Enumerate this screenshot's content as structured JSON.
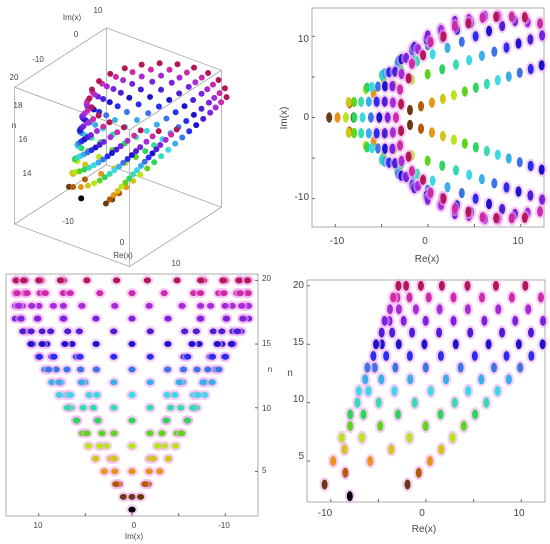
{
  "colors": {
    "n2": "#000000",
    "n3": "#6b3a12",
    "n4": "#b35a08",
    "n5": "#e89418",
    "n6": "#d2c41a",
    "n7": "#b9e51b",
    "n8": "#5fd41e",
    "n9": "#2fd45c",
    "n10": "#35dbb2",
    "n11": "#3dd8e6",
    "n12": "#3aaee8",
    "n13": "#3d73e8",
    "n14": "#2a2cef",
    "n15": "#1e13cc",
    "n16": "#4a1fd6",
    "n17": "#7a22e0",
    "n18": "#a52ad8",
    "n19": "#cc2aa8",
    "n20": "#b31757",
    "halo": "#f0a8ee",
    "frame": "#999999",
    "axis": "#333333"
  },
  "chart_data": [
    {
      "type": "scatter",
      "panel": "3d-view",
      "xlabel": "Re(x)",
      "ylabel": "Im(x)",
      "zlabel": "n",
      "re_ticks": [
        "-10",
        "0",
        "10"
      ],
      "im_ticks": [
        "10",
        "0",
        "-10"
      ],
      "n_ticks": [
        "20",
        "18",
        "16",
        "14"
      ],
      "grid": false
    },
    {
      "type": "scatter",
      "panel": "complex-plane",
      "xlabel": "Re(x)",
      "ylabel": "Im(x)",
      "xlim": [
        -12.5,
        12.5
      ],
      "ylim": [
        -13.5,
        13.5
      ],
      "x_ticks": [
        "-10",
        "0",
        "10"
      ],
      "y_ticks": [
        "10",
        "0",
        "-10"
      ],
      "grid": false
    },
    {
      "type": "scatter",
      "panel": "im-n-view",
      "xlabel": "Im(x)",
      "ylabel": "n",
      "xlim": [
        13.5,
        -13.5
      ],
      "ylim": [
        1.5,
        20.5
      ],
      "x_ticks": [
        "10",
        "0",
        "-10"
      ],
      "y_ticks": [
        "20",
        "15",
        "10",
        "5"
      ],
      "grid": false
    },
    {
      "type": "scatter",
      "panel": "re-n-view",
      "xlabel": "Re(x)",
      "ylabel": "n",
      "xlim": [
        -12.5,
        12.5
      ],
      "ylim": [
        1.5,
        20.5
      ],
      "x_ticks": [
        "-10",
        "0",
        "10"
      ],
      "y_ticks": [
        "20",
        "15",
        "10",
        "5"
      ],
      "grid": false
    }
  ]
}
